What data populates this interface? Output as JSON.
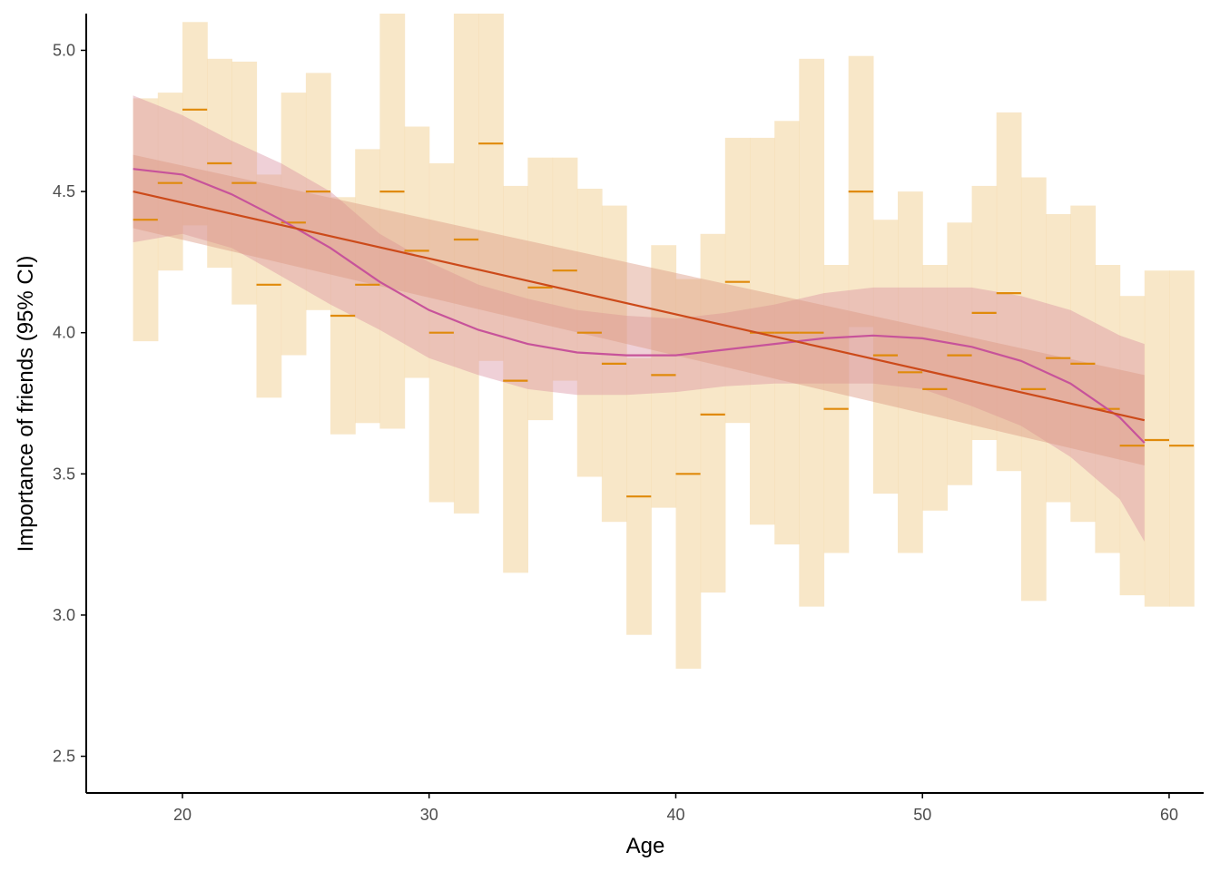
{
  "chart_data": {
    "type": "line",
    "title": "",
    "xlabel": "Age",
    "ylabel": "Importance of friends (95% CI)",
    "xlim": [
      16.1,
      61.4
    ],
    "ylim": [
      2.37,
      5.13
    ],
    "x_ticks": [
      20,
      30,
      40,
      50,
      60
    ],
    "y_ticks": [
      2.5,
      3.0,
      3.5,
      4.0,
      4.5,
      5.0
    ],
    "x_tick_labels": [
      "20",
      "30",
      "40",
      "50",
      "60"
    ],
    "y_tick_labels": [
      "2.5",
      "3.0",
      "3.5",
      "4.0",
      "4.5",
      "5.0"
    ],
    "grid": false,
    "colors": {
      "ci_bars": "#f5deb3",
      "means": "#e08a0b",
      "linear_fit": "#cc4a1a",
      "linear_band": "#dc9a82",
      "smooth_fit": "#c7539a",
      "smooth_band": "#d98fa0"
    },
    "age_means": {
      "x": [
        18,
        19,
        20,
        21,
        22,
        23,
        24,
        25,
        26,
        27,
        28,
        29,
        30,
        31,
        32,
        33,
        34,
        35,
        36,
        37,
        38,
        39,
        40,
        41,
        42,
        43,
        44,
        45,
        46,
        47,
        48,
        49,
        50,
        51,
        52,
        53,
        54,
        55,
        56,
        57,
        58,
        59,
        60
      ],
      "mean": [
        4.4,
        4.53,
        4.79,
        4.6,
        4.53,
        4.17,
        4.39,
        4.5,
        4.06,
        4.17,
        4.5,
        4.29,
        4.0,
        4.33,
        4.67,
        3.83,
        4.16,
        4.22,
        4.0,
        3.89,
        3.42,
        3.85,
        3.5,
        3.71,
        4.18,
        4.0,
        4.0,
        4.0,
        3.73,
        4.5,
        3.92,
        3.86,
        3.8,
        3.92,
        4.07,
        4.14,
        3.8,
        3.91,
        3.89,
        3.73,
        3.6,
        3.62,
        3.6
      ],
      "lower": [
        3.97,
        4.22,
        4.38,
        4.23,
        4.1,
        3.77,
        3.92,
        4.08,
        3.64,
        3.68,
        3.66,
        3.84,
        3.4,
        3.36,
        3.9,
        3.15,
        3.69,
        3.83,
        3.49,
        3.33,
        2.93,
        3.38,
        2.81,
        3.08,
        3.68,
        3.32,
        3.25,
        3.03,
        3.22,
        4.02,
        3.43,
        3.22,
        3.37,
        3.46,
        3.62,
        3.51,
        3.05,
        3.4,
        3.33,
        3.22,
        3.07,
        3.03,
        3.03
      ],
      "upper": [
        4.83,
        4.85,
        5.1,
        4.97,
        4.96,
        4.56,
        4.85,
        4.92,
        4.48,
        4.65,
        5.13,
        4.73,
        4.6,
        5.13,
        5.13,
        4.52,
        4.62,
        4.62,
        4.51,
        4.45,
        3.91,
        4.31,
        4.19,
        4.35,
        4.69,
        4.69,
        4.75,
        4.97,
        4.24,
        4.98,
        4.4,
        4.5,
        4.24,
        4.39,
        4.52,
        4.78,
        4.55,
        4.42,
        4.45,
        4.24,
        4.13,
        4.22,
        4.22
      ]
    },
    "linear_fit": {
      "x": [
        18,
        59
      ],
      "y": [
        4.5,
        3.69
      ],
      "lower": [
        4.37,
        3.53
      ],
      "upper": [
        4.63,
        3.85
      ]
    },
    "smooth_fit": {
      "x": [
        18,
        20,
        22,
        24,
        26,
        28,
        30,
        32,
        34,
        36,
        38,
        40,
        42,
        44,
        46,
        48,
        50,
        52,
        54,
        56,
        58,
        59
      ],
      "y": [
        4.58,
        4.56,
        4.49,
        4.4,
        4.3,
        4.18,
        4.08,
        4.01,
        3.96,
        3.93,
        3.92,
        3.92,
        3.94,
        3.96,
        3.98,
        3.99,
        3.98,
        3.95,
        3.9,
        3.82,
        3.7,
        3.61
      ],
      "lower": [
        4.32,
        4.35,
        4.3,
        4.2,
        4.1,
        4.01,
        3.91,
        3.85,
        3.8,
        3.78,
        3.78,
        3.79,
        3.81,
        3.82,
        3.82,
        3.82,
        3.8,
        3.74,
        3.67,
        3.56,
        3.41,
        3.26
      ],
      "upper": [
        4.84,
        4.77,
        4.68,
        4.6,
        4.5,
        4.35,
        4.25,
        4.17,
        4.12,
        4.08,
        4.06,
        4.05,
        4.07,
        4.1,
        4.14,
        4.16,
        4.16,
        4.16,
        4.13,
        4.08,
        3.99,
        3.96
      ]
    }
  }
}
